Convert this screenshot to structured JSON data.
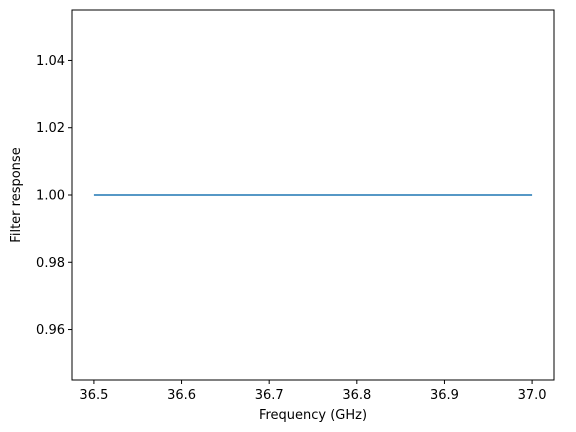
{
  "chart_data": {
    "type": "line",
    "title": "",
    "xlabel": "Frequency (GHz)",
    "ylabel": "Filter response",
    "xlim": [
      36.475,
      37.025
    ],
    "ylim": [
      0.945,
      1.055
    ],
    "xticks": [
      36.5,
      36.6,
      36.7,
      36.8,
      36.9,
      37.0
    ],
    "xtick_labels": [
      "36.5",
      "36.6",
      "36.7",
      "36.8",
      "36.9",
      "37.0"
    ],
    "yticks": [
      0.96,
      0.98,
      1.0,
      1.02,
      1.04
    ],
    "ytick_labels": [
      "0.96",
      "0.98",
      "1.00",
      "1.02",
      "1.04"
    ],
    "grid": false,
    "series": [
      {
        "color": "#1f77b4",
        "x": [
          36.5,
          37.0
        ],
        "y": [
          1.0,
          1.0
        ]
      }
    ]
  }
}
